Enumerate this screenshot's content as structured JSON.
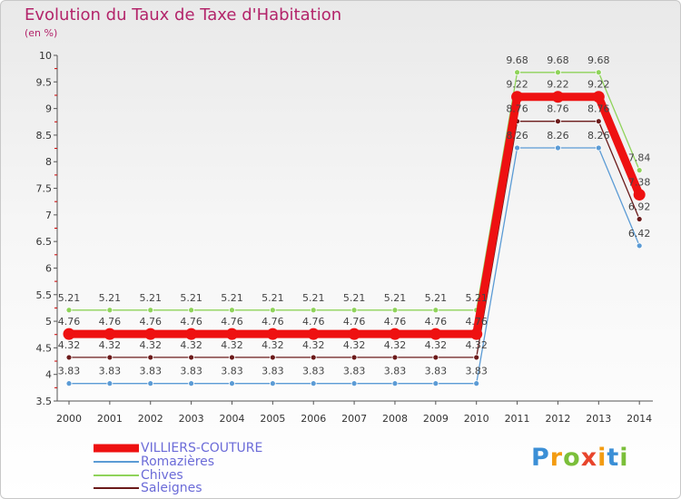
{
  "title": "Evolution du Taux de Taxe d'Habitation",
  "subtitle": "(en %)",
  "logo": {
    "text": "Proxiti",
    "colors": [
      "#3b8fd6",
      "#f39c12",
      "#7bbf3a",
      "#e8452c",
      "#f39c12",
      "#3b8fd6",
      "#7bbf3a"
    ]
  },
  "chart_data": {
    "type": "line",
    "title": "Evolution du Taux de Taxe d'Habitation",
    "ylabel": "(en %)",
    "x": [
      "2000",
      "2001",
      "2002",
      "2003",
      "2004",
      "2005",
      "2006",
      "2007",
      "2008",
      "2009",
      "2010",
      "2011",
      "2012",
      "2013",
      "2014"
    ],
    "y_ticks": [
      "3.5",
      "4",
      "4.5",
      "5",
      "5.5",
      "6",
      "6.5",
      "7",
      "7.5",
      "8",
      "8.5",
      "9",
      "9.5",
      "10"
    ],
    "ylim": [
      3.5,
      10
    ],
    "grid": false,
    "legend_position": "bottom-left",
    "series": [
      {
        "name": "VILLIERS-COUTURE",
        "color": "#ee1111",
        "emphasis": true,
        "values": [
          4.76,
          4.76,
          4.76,
          4.76,
          4.76,
          4.76,
          4.76,
          4.76,
          4.76,
          4.76,
          4.76,
          9.22,
          9.22,
          9.22,
          7.38
        ],
        "labels": [
          "4.76",
          "4.76",
          "4.76",
          "4.76",
          "4.76",
          "4.76",
          "4.76",
          "4.76",
          "4.76",
          "4.76",
          "4.76",
          "9.22",
          "9.22",
          "9.22",
          "7.38"
        ]
      },
      {
        "name": "Romazières",
        "color": "#5b9bd5",
        "values": [
          3.83,
          3.83,
          3.83,
          3.83,
          3.83,
          3.83,
          3.83,
          3.83,
          3.83,
          3.83,
          3.83,
          8.26,
          8.26,
          8.26,
          6.42
        ],
        "labels": [
          "3.83",
          "3.83",
          "3.83",
          "3.83",
          "3.83",
          "3.83",
          "3.83",
          "3.83",
          "3.83",
          "3.83",
          "3.83",
          "8.26",
          "8.26",
          "8.26",
          "6.42"
        ]
      },
      {
        "name": "Chives",
        "color": "#8fd35a",
        "values": [
          5.21,
          5.21,
          5.21,
          5.21,
          5.21,
          5.21,
          5.21,
          5.21,
          5.21,
          5.21,
          5.21,
          9.68,
          9.68,
          9.68,
          7.84
        ],
        "labels": [
          "5.21",
          "5.21",
          "5.21",
          "5.21",
          "5.21",
          "5.21",
          "5.21",
          "5.21",
          "5.21",
          "5.21",
          "5.21",
          "9.68",
          "9.68",
          "9.68",
          "7.84"
        ]
      },
      {
        "name": "Saleignes",
        "color": "#6b1a1a",
        "values": [
          4.32,
          4.32,
          4.32,
          4.32,
          4.32,
          4.32,
          4.32,
          4.32,
          4.32,
          4.32,
          4.32,
          8.76,
          8.76,
          8.76,
          6.92
        ],
        "labels": [
          "4.32",
          "4.32",
          "4.32",
          "4.32",
          "4.32",
          "4.32",
          "4.32",
          "4.32",
          "4.32",
          "4.32",
          "4.32",
          "8.76",
          "8.76",
          "8.76",
          "6.92"
        ]
      }
    ]
  }
}
